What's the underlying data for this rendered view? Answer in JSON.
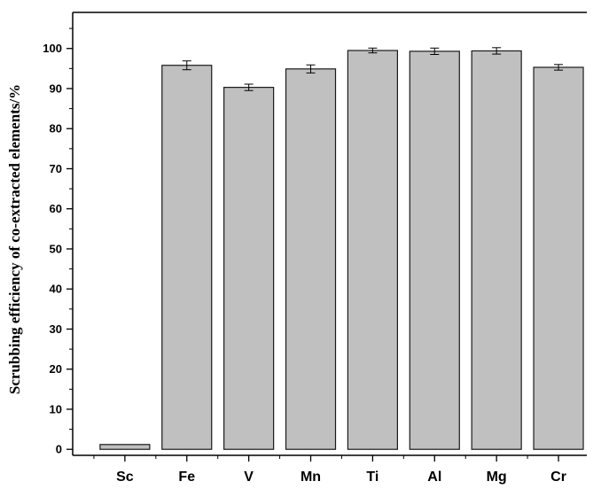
{
  "chart_data": {
    "type": "bar",
    "title": "",
    "xlabel": "",
    "ylabel": "Scrubbing efficiency of co-extracted elements/%",
    "categories": [
      "Sc",
      "Fe",
      "V",
      "Mn",
      "Ti",
      "Al",
      "Mg",
      "Cr"
    ],
    "values": [
      1.2,
      95.8,
      90.3,
      94.9,
      99.5,
      99.3,
      99.4,
      95.3
    ],
    "errors": [
      0,
      1.1,
      0.8,
      1.0,
      0.6,
      0.8,
      0.8,
      0.7
    ],
    "ylim": [
      -1.5,
      109
    ],
    "yticks": [
      0,
      10,
      20,
      30,
      40,
      50,
      60,
      70,
      80,
      90,
      100
    ],
    "grid": false,
    "legend": "none",
    "colors": {
      "bar_fill": "#c0c0c0",
      "bar_stroke": "#1a1a1a",
      "axis": "#000000"
    }
  }
}
